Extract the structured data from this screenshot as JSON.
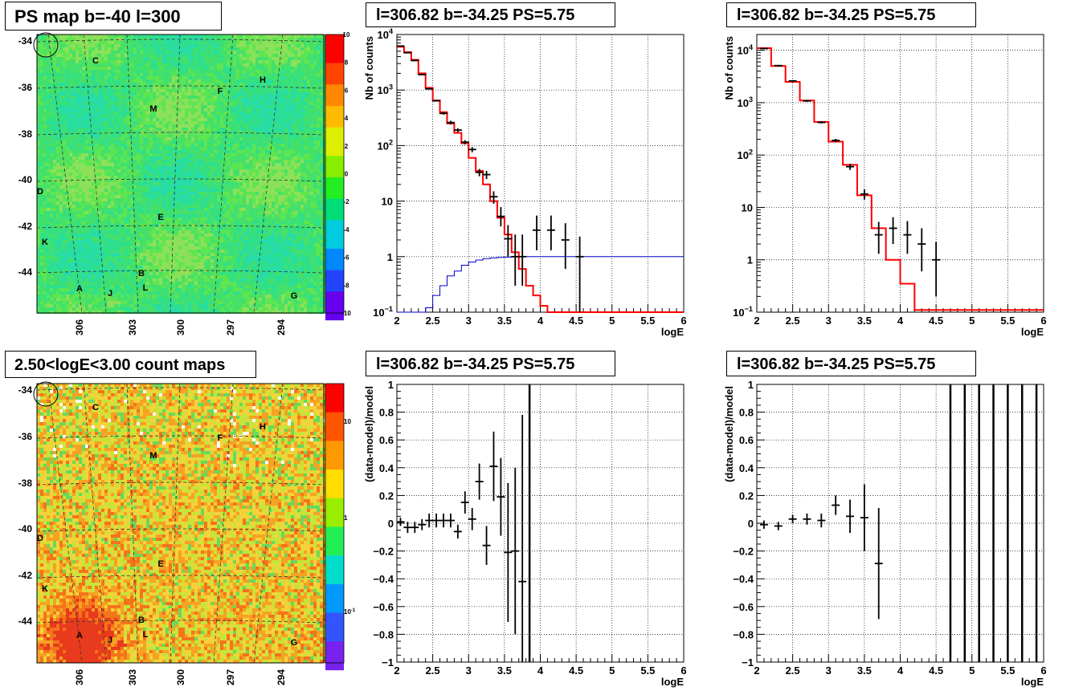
{
  "panels": {
    "map_top": {
      "title": "PS map b=-40 l=300",
      "y_ticks": [
        "-34",
        "-36",
        "-38",
        "-40",
        "-42",
        "-44"
      ],
      "x_ticks": [
        "306",
        "303",
        "300",
        "297",
        "294"
      ],
      "colorbar_ticks": [
        "10",
        "8",
        "6",
        "4",
        "2",
        "0",
        "-2",
        "-4",
        "-6",
        "-8",
        "-10"
      ],
      "sources": [
        "C",
        "H",
        "F",
        "M",
        "D",
        "E",
        "K",
        "B",
        "L",
        "A",
        "J",
        "G"
      ]
    },
    "map_bottom": {
      "title": "2.50<logE<3.00 count maps",
      "y_ticks": [
        "-34",
        "-36",
        "-38",
        "-40",
        "-42",
        "-44"
      ],
      "x_ticks": [
        "306",
        "303",
        "300",
        "297",
        "294"
      ],
      "colorbar_ticks": [
        "10",
        "1",
        "10⁻¹"
      ],
      "sources": [
        "C",
        "H",
        "F",
        "M",
        "D",
        "E",
        "K",
        "B",
        "L",
        "A",
        "J",
        "G"
      ]
    },
    "spec_mid": {
      "title": "l=306.82 b=-34.25 PS=5.75"
    },
    "spec_right": {
      "title": "l=306.82 b=-34.25 PS=5.75"
    },
    "res_mid": {
      "title": "l=306.82 b=-34.25 PS=5.75"
    },
    "res_right": {
      "title": "l=306.82 b=-34.25 PS=5.75"
    }
  },
  "chart_data": [
    {
      "id": "spec_mid",
      "type": "line",
      "log_y": true,
      "grid": true,
      "xlabel": "logE",
      "ylabel": "Nb of counts",
      "xlim": [
        2,
        6
      ],
      "ylim": [
        0.1,
        10000
      ],
      "x_ticks": [
        "2",
        "2.5",
        "3",
        "3.5",
        "4",
        "4.5",
        "5",
        "5.5",
        "6"
      ],
      "y_ticks": [
        "10⁻¹",
        "1",
        "10",
        "10²",
        "10³",
        "10⁴"
      ],
      "series": [
        {
          "style": "step",
          "color": "#ff0000",
          "edges": [
            2.0,
            2.1,
            2.2,
            2.3,
            2.4,
            2.5,
            2.6,
            2.7,
            2.8,
            2.9,
            3.0,
            3.1,
            3.2,
            3.3,
            3.4,
            3.5,
            3.6,
            3.7,
            3.8,
            3.9,
            4.0,
            4.1,
            4.2,
            6.0
          ],
          "values": [
            6000,
            4800,
            3500,
            2000,
            1100,
            650,
            400,
            250,
            170,
            110,
            60,
            35,
            20,
            10,
            5,
            2.5,
            1.2,
            0.6,
            0.3,
            0.2,
            0.13,
            0.1,
            0.1
          ]
        },
        {
          "style": "step",
          "color": "#0000cc",
          "edges": [
            2.0,
            2.1,
            2.2,
            2.3,
            2.4,
            2.5,
            2.6,
            2.7,
            2.8,
            2.9,
            3.0,
            3.1,
            3.2,
            3.3,
            3.4,
            3.5,
            3.6,
            3.7,
            6.0
          ],
          "values": [
            0.1,
            0.1,
            0.1,
            0.1,
            0.12,
            0.2,
            0.3,
            0.45,
            0.55,
            0.7,
            0.8,
            0.87,
            0.92,
            0.95,
            0.97,
            0.98,
            0.99,
            1.0
          ]
        },
        {
          "style": "points",
          "color": "#000000",
          "x": [
            2.05,
            2.15,
            2.25,
            2.35,
            2.45,
            2.55,
            2.65,
            2.75,
            2.85,
            2.95,
            3.05,
            3.15,
            3.25,
            3.35,
            3.45,
            3.55,
            3.65,
            3.75,
            3.85,
            3.95,
            4.15,
            4.35,
            4.55
          ],
          "y": [
            6200,
            4700,
            3400,
            1900,
            1050,
            640,
            380,
            260,
            190,
            115,
            85,
            33,
            30,
            12,
            5.3,
            2.1,
            1.0,
            1.0,
            0,
            3,
            3,
            2,
            1
          ],
          "ylo": [
            6100,
            4600,
            3300,
            1850,
            1020,
            620,
            360,
            240,
            175,
            105,
            76,
            28,
            25,
            9,
            3.5,
            1.0,
            0.3,
            0.3,
            0,
            1.3,
            1.3,
            0.6,
            0.1
          ],
          "yhi": [
            6300,
            4800,
            3500,
            1950,
            1080,
            660,
            400,
            280,
            205,
            125,
            94,
            38,
            35,
            15,
            7.8,
            3.7,
            2.5,
            2.5,
            0,
            5.5,
            5.5,
            4.0,
            2.3
          ]
        }
      ]
    },
    {
      "id": "spec_right",
      "type": "line",
      "log_y": true,
      "grid": true,
      "xlabel": "logE",
      "ylabel": "Nb of counts",
      "xlim": [
        2,
        6
      ],
      "ylim": [
        0.1,
        20000
      ],
      "x_ticks": [
        "2",
        "2.5",
        "3",
        "3.5",
        "4",
        "4.5",
        "5",
        "5.5",
        "6"
      ],
      "y_ticks": [
        "10⁻¹",
        "1",
        "10",
        "10²",
        "10³",
        "10⁴"
      ],
      "series": [
        {
          "style": "step",
          "color": "#ff0000",
          "edges": [
            2.0,
            2.2,
            2.4,
            2.6,
            2.8,
            3.0,
            3.2,
            3.4,
            3.6,
            3.8,
            4.0,
            4.2,
            6.0
          ],
          "values": [
            11000,
            5000,
            2500,
            1100,
            430,
            180,
            65,
            17,
            4,
            1,
            0.35,
            0.11
          ]
        },
        {
          "style": "points",
          "color": "#000000",
          "x": [
            2.1,
            2.3,
            2.5,
            2.7,
            2.9,
            3.1,
            3.3,
            3.5,
            3.7,
            3.9,
            4.1,
            4.3,
            4.5
          ],
          "y": [
            10800,
            5100,
            2600,
            1080,
            420,
            190,
            60,
            18,
            3,
            4,
            3,
            2,
            1
          ],
          "ylo": [
            10600,
            4950,
            2500,
            1040,
            400,
            176,
            52,
            14,
            1.3,
            2,
            1.3,
            0.6,
            0.2
          ],
          "yhi": [
            11000,
            5250,
            2700,
            1120,
            440,
            204,
            68,
            22,
            5.3,
            6.5,
            5.5,
            4,
            2.2
          ]
        }
      ]
    },
    {
      "id": "res_mid",
      "type": "scatter",
      "log_y": false,
      "grid": true,
      "xlabel": "logE",
      "ylabel": "(data-model)/model",
      "xlim": [
        2,
        6
      ],
      "ylim": [
        -1,
        1
      ],
      "x_ticks": [
        "2",
        "2.5",
        "3",
        "3.5",
        "4",
        "4.5",
        "5",
        "5.5",
        "6"
      ],
      "y_ticks": [
        "−1",
        "−0.8",
        "−0.6",
        "−0.4",
        "−0.2",
        "0",
        "0.2",
        "0.4",
        "0.6",
        "0.8",
        "1"
      ],
      "points": {
        "x": [
          2.05,
          2.15,
          2.25,
          2.35,
          2.45,
          2.55,
          2.65,
          2.75,
          2.85,
          2.95,
          3.05,
          3.15,
          3.25,
          3.35,
          3.45,
          3.55,
          3.65,
          3.75,
          3.85
        ],
        "y": [
          0.01,
          -0.03,
          -0.03,
          -0.01,
          0.02,
          0.02,
          0.02,
          0.02,
          -0.06,
          0.15,
          0.03,
          0.3,
          -0.16,
          0.41,
          0.19,
          -0.21,
          -0.2,
          -0.42,
          0.34
        ],
        "err": [
          0.03,
          0.04,
          0.04,
          0.04,
          0.05,
          0.05,
          0.05,
          0.05,
          0.05,
          0.08,
          0.08,
          0.13,
          0.14,
          0.25,
          0.28,
          0.5,
          0.6,
          1.2,
          2.0
        ]
      }
    },
    {
      "id": "res_right",
      "type": "scatter",
      "log_y": false,
      "grid": true,
      "xlabel": "logE",
      "ylabel": "(data-model)/model",
      "xlim": [
        2,
        6
      ],
      "ylim": [
        -1,
        1
      ],
      "x_ticks": [
        "2",
        "2.5",
        "3",
        "3.5",
        "4",
        "4.5",
        "5",
        "5.5",
        "6"
      ],
      "y_ticks": [
        "−1",
        "−0.8",
        "−0.6",
        "−0.4",
        "−0.2",
        "0",
        "0.2",
        "0.4",
        "0.6",
        "0.8",
        "1"
      ],
      "points": {
        "x": [
          2.1,
          2.3,
          2.5,
          2.7,
          2.9,
          3.1,
          3.3,
          3.5,
          3.7,
          4.7,
          4.9,
          5.1,
          5.3,
          5.5,
          5.7,
          5.9
        ],
        "y": [
          -0.01,
          -0.02,
          0.03,
          0.03,
          0.02,
          0.13,
          0.05,
          0.04,
          -0.29,
          0,
          0,
          0,
          0,
          0,
          0,
          0
        ],
        "err": [
          0.03,
          0.03,
          0.03,
          0.04,
          0.05,
          0.07,
          0.12,
          0.24,
          0.4,
          5,
          5,
          5,
          5,
          5,
          5,
          5
        ]
      }
    }
  ]
}
